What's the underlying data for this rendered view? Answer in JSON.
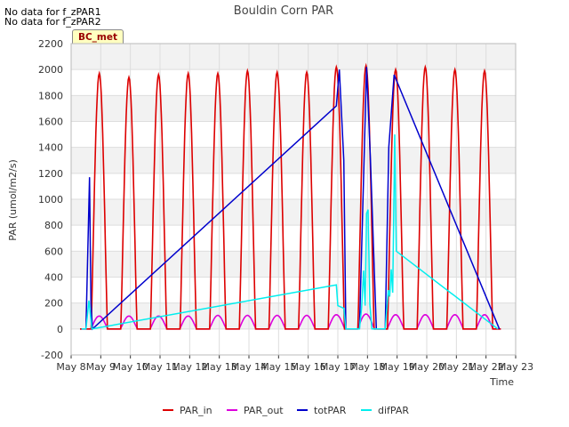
{
  "no_data_messages": [
    "No data for f_zPAR1",
    "No data for f_zPAR2"
  ],
  "site_badge": "BC_met",
  "chart_data": {
    "type": "line",
    "title": "Bouldin Corn PAR",
    "xlabel": "Time",
    "ylabel": "PAR (umol/m2/s)",
    "ylim": [
      -200,
      2200
    ],
    "yticks": [
      -200,
      0,
      200,
      400,
      600,
      800,
      1000,
      1200,
      1400,
      1600,
      1800,
      2000,
      2200
    ],
    "xlim": [
      8,
      23
    ],
    "xtick_values": [
      8,
      9,
      10,
      11,
      12,
      13,
      14,
      15,
      16,
      17,
      18,
      19,
      20,
      21,
      22,
      23
    ],
    "xtick_labels": [
      "May 8",
      "May 9",
      "May 10",
      "May 11",
      "May 12",
      "May 13",
      "May 14",
      "May 15",
      "May 16",
      "May 17",
      "May 18",
      "May 19",
      "May 20",
      "May 21",
      "May 22",
      "May 23"
    ],
    "daily_peaks": {
      "days": [
        9,
        10,
        11,
        12,
        13,
        14,
        15,
        16,
        17,
        18,
        19,
        20,
        21,
        22
      ],
      "PAR_in": [
        1970,
        1940,
        1960,
        1970,
        1970,
        1990,
        1980,
        1980,
        2020,
        2030,
        2000,
        2020,
        2000,
        1990
      ],
      "PAR_out": [
        100,
        100,
        100,
        100,
        105,
        105,
        105,
        105,
        110,
        115,
        110,
        110,
        110,
        110
      ]
    },
    "series": [
      {
        "name": "PAR_in",
        "color": "#dd0000"
      },
      {
        "name": "PAR_out",
        "color": "#dd00dd"
      },
      {
        "name": "totPAR",
        "color": "#0000cc",
        "points": [
          [
            8.5,
            0
          ],
          [
            8.62,
            1170
          ],
          [
            8.67,
            200
          ],
          [
            8.72,
            0
          ],
          [
            16.95,
            1720
          ],
          [
            17.05,
            2000
          ],
          [
            17.2,
            1300
          ],
          [
            17.27,
            0
          ],
          [
            17.73,
            0
          ],
          [
            17.85,
            1000
          ],
          [
            17.97,
            2020
          ],
          [
            18.1,
            1300
          ],
          [
            18.3,
            0
          ],
          [
            18.6,
            0
          ],
          [
            18.72,
            1400
          ],
          [
            18.9,
            1960
          ],
          [
            22.45,
            0
          ]
        ]
      },
      {
        "name": "difPAR",
        "color": "#00eeee",
        "points": [
          [
            8.35,
            0
          ],
          [
            8.5,
            0
          ],
          [
            8.6,
            220
          ],
          [
            8.7,
            0
          ],
          [
            16.95,
            340
          ],
          [
            17.0,
            180
          ],
          [
            17.2,
            160
          ],
          [
            17.27,
            0
          ],
          [
            17.73,
            0
          ],
          [
            17.8,
            160
          ],
          [
            17.87,
            450
          ],
          [
            17.92,
            180
          ],
          [
            17.97,
            890
          ],
          [
            18.02,
            920
          ],
          [
            18.08,
            190
          ],
          [
            18.15,
            0
          ],
          [
            18.6,
            0
          ],
          [
            18.7,
            300
          ],
          [
            18.75,
            250
          ],
          [
            18.8,
            460
          ],
          [
            18.85,
            280
          ],
          [
            18.92,
            1500
          ],
          [
            18.97,
            600
          ],
          [
            22.4,
            0
          ]
        ]
      }
    ],
    "legend": [
      "PAR_in",
      "PAR_out",
      "totPAR",
      "difPAR"
    ],
    "legend_position": "bottom-center",
    "grid": true
  }
}
